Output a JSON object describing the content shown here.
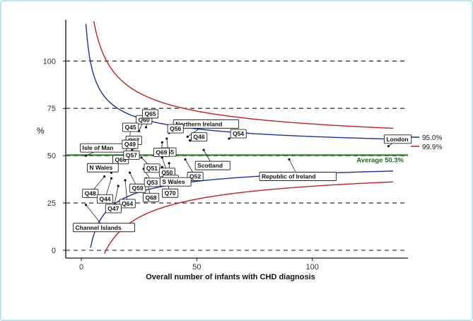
{
  "chart_data": {
    "type": "scatter",
    "subtype": "funnel-plot",
    "title": "",
    "xlabel": "Overall number of infants with CHD diagnosis",
    "ylabel": "%",
    "xlim": [
      -5,
      140
    ],
    "ylim": [
      -3,
      120
    ],
    "x_ticks": [
      0,
      50,
      100
    ],
    "y_ticks": [
      0,
      25,
      50,
      75,
      100
    ],
    "grid": "dashed horizontal at y ticks",
    "average": {
      "value": 50.3,
      "label": "Average 50.3%",
      "color": "#1a7a1a"
    },
    "limits": [
      {
        "name": "95.0%",
        "z": 1.96,
        "color": "#1f2fa0"
      },
      {
        "name": "99.9%",
        "z": 3.29,
        "color": "#c0201f"
      }
    ],
    "legend_position": "right",
    "points": [
      {
        "label": "Q60",
        "x": 25,
        "y": 63
      },
      {
        "label": "Q65",
        "x": 28,
        "y": 65
      },
      {
        "label": "Q45",
        "x": 21,
        "y": 59
      },
      {
        "label": "Northern Ireland",
        "x": 46,
        "y": 60
      },
      {
        "label": "Q56",
        "x": 38,
        "y": 62
      },
      {
        "label": "Q55",
        "x": 37,
        "y": 59
      },
      {
        "label": "Q46",
        "x": 47,
        "y": 58
      },
      {
        "label": "Q54",
        "x": 64,
        "y": 59
      },
      {
        "label": "London",
        "x": 133,
        "y": 55
      },
      {
        "label": "Q69",
        "x": 35,
        "y": 57
      },
      {
        "label": "Q67",
        "x": 23,
        "y": 54
      },
      {
        "label": "Isle of Man",
        "x": 2,
        "y": 50
      },
      {
        "label": "Q49",
        "x": 22,
        "y": 53
      },
      {
        "label": "Q66",
        "x": 17,
        "y": 49
      },
      {
        "label": "Q57",
        "x": 22,
        "y": 51
      },
      {
        "label": "Q51",
        "x": 26,
        "y": 49
      },
      {
        "label": "Q50",
        "x": 35,
        "y": 49
      },
      {
        "label": "Scotland",
        "x": 53,
        "y": 53
      },
      {
        "label": "Q58",
        "x": 38,
        "y": 46
      },
      {
        "label": "Q52",
        "x": 45,
        "y": 48
      },
      {
        "label": "Republic of Ireland",
        "x": 90,
        "y": 48
      },
      {
        "label": "N Wales",
        "x": 13,
        "y": 41
      },
      {
        "label": "Q59",
        "x": 21,
        "y": 41
      },
      {
        "label": "Q53",
        "x": 27,
        "y": 43
      },
      {
        "label": "S Wales",
        "x": 35,
        "y": 44
      },
      {
        "label": "Q48",
        "x": 10,
        "y": 39
      },
      {
        "label": "Q44",
        "x": 13,
        "y": 38
      },
      {
        "label": "Q64",
        "x": 19,
        "y": 37
      },
      {
        "label": "Q68",
        "x": 28,
        "y": 38
      },
      {
        "label": "Q70",
        "x": 36,
        "y": 41
      },
      {
        "label": "Q47",
        "x": 16,
        "y": 34
      },
      {
        "label": "Channel Islands",
        "x": 2,
        "y": 24
      }
    ]
  }
}
